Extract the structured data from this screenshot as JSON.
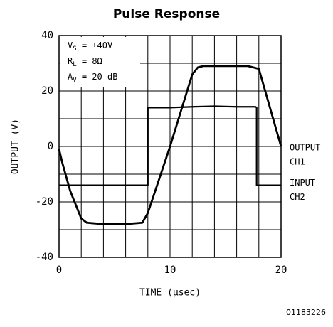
{
  "chart_data": {
    "type": "line",
    "title": "Pulse Response",
    "xlabel": "TIME (μsec)",
    "ylabel": "OUTPUT (V)",
    "xlim": [
      0,
      20
    ],
    "ylim": [
      -40,
      40
    ],
    "xticks": [
      0,
      10,
      20
    ],
    "yticks": [
      -40,
      -20,
      0,
      20,
      40
    ],
    "xminor": [
      2,
      4,
      6,
      8,
      12,
      14,
      16,
      18
    ],
    "yminor": [
      -30,
      -10,
      10,
      30
    ],
    "grid": true,
    "annotations": [
      {
        "main": "V",
        "sub": "S",
        "rest": " = ±40V"
      },
      {
        "main": "R",
        "sub": "L",
        "rest": " = 8Ω"
      },
      {
        "main": "A",
        "sub": "V",
        "rest": " = 20 dB"
      }
    ],
    "series": [
      {
        "name": "OUTPUT",
        "channel": "CH1",
        "color": "#000000",
        "x": [
          0,
          0.3,
          1,
          2,
          2.5,
          4,
          6,
          7.5,
          8,
          10,
          12,
          12.5,
          13,
          15,
          17,
          18,
          20
        ],
        "values": [
          -1,
          -6,
          -16,
          -26,
          -27.5,
          -28,
          -28,
          -27.5,
          -24,
          0,
          26,
          28.5,
          29,
          29,
          29,
          28,
          0
        ]
      },
      {
        "name": "INPUT",
        "channel": "CH2",
        "color": "#000000",
        "x": [
          0,
          7.9,
          8,
          8,
          10,
          12,
          14,
          16,
          17.7,
          17.8,
          17.8,
          18.5,
          20
        ],
        "values": [
          -14,
          -14,
          -14,
          14,
          14,
          14.3,
          14.5,
          14.3,
          14.3,
          14,
          -14,
          -14,
          -14
        ]
      }
    ],
    "figure_id": "01183226"
  }
}
